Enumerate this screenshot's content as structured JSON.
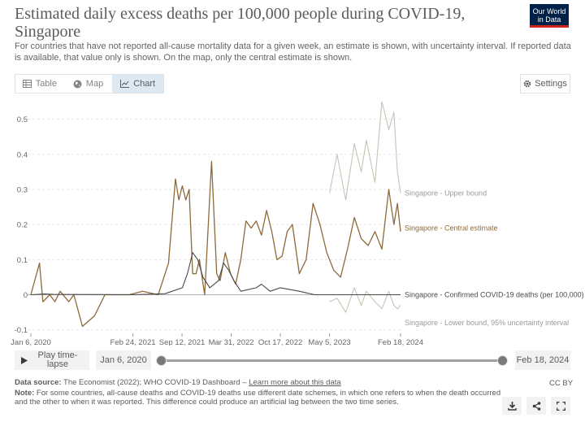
{
  "header": {
    "title": "Estimated daily excess deaths per 100,000 people during COVID-19, Singapore",
    "subtitle": "For countries that have not reported all-cause mortality data for a given week, an estimate is shown, with uncertainty interval. If reported data is available, that value only is shown. On the map, only the central estimate is shown.",
    "logo_line1": "Our World",
    "logo_line2": "in Data"
  },
  "tabs": [
    {
      "label": "Table",
      "icon": "table-icon"
    },
    {
      "label": "Map",
      "icon": "globe-icon"
    },
    {
      "label": "Chart",
      "icon": "line-chart-icon",
      "active": true
    }
  ],
  "settings_label": "Settings",
  "controls": {
    "play_label": "Play time-lapse",
    "start_date": "Jan 6, 2020",
    "end_date": "Feb 18, 2024"
  },
  "footer": {
    "source_label": "Data source:",
    "source_text": "The Economist (2022); WHO COVID-19 Dashboard – ",
    "source_link": "Learn more about this data",
    "note_label": "Note:",
    "note_text": "For some countries, all-cause deaths and COVID-19 deaths use different date schemes, in which one refers to when the death occurred and the other to when it was reported. This difference could produce an artificial lag between the two time series.",
    "license": "CC BY"
  },
  "colors": {
    "central": "#8c6a3a",
    "bounds": "#c9c3b6",
    "confirmed": "#484848",
    "logo_bg": "#002147",
    "logo_accent": "#ce261e",
    "active_tab": "#dde9f2"
  },
  "chart_data": {
    "type": "line",
    "title": "Estimated daily excess deaths per 100,000 people during COVID-19, Singapore",
    "ylim": [
      -0.11,
      0.55
    ],
    "y_ticks": [
      -0.1,
      0,
      0.1,
      0.2,
      0.3,
      0.4,
      0.5
    ],
    "x_ticks": [
      "Jan 6, 2020",
      "Feb 24, 2021",
      "Sep 12, 2021",
      "Mar 31, 2022",
      "Oct 17, 2022",
      "May 5, 2023",
      "Feb 18, 2024"
    ],
    "x_range": [
      "2020-01-06",
      "2024-02-18"
    ],
    "grid": "horizontal",
    "series": [
      {
        "name": "Singapore - Central estimate",
        "x": [
          "2020-01-06",
          "2020-02-10",
          "2020-02-24",
          "2020-03-23",
          "2020-04-13",
          "2020-05-04",
          "2020-06-08",
          "2020-06-29",
          "2020-08-03",
          "2020-09-21",
          "2020-11-02",
          "2020-12-21",
          "2021-02-08",
          "2021-04-05",
          "2021-06-07",
          "2021-07-19",
          "2021-08-16",
          "2021-08-30",
          "2021-09-13",
          "2021-09-27",
          "2021-10-11",
          "2021-10-25",
          "2021-11-08",
          "2021-11-22",
          "2021-12-13",
          "2022-01-10",
          "2022-01-31",
          "2022-02-14",
          "2022-03-07",
          "2022-03-28",
          "2022-04-18",
          "2022-05-09",
          "2022-05-30",
          "2022-06-20",
          "2022-07-11",
          "2022-08-01",
          "2022-08-22",
          "2022-09-12",
          "2022-10-03",
          "2022-10-24",
          "2022-11-14",
          "2022-12-05",
          "2023-01-02",
          "2023-01-30",
          "2023-02-27",
          "2023-03-27",
          "2023-04-24",
          "2023-05-22",
          "2023-06-19",
          "2023-07-17",
          "2023-08-14",
          "2023-09-11",
          "2023-10-09",
          "2023-11-06",
          "2023-12-04",
          "2024-01-01",
          "2024-01-22",
          "2024-02-05",
          "2024-02-18"
        ],
        "y": [
          0.0,
          0.09,
          -0.02,
          0.0,
          -0.02,
          0.01,
          -0.02,
          0.0,
          -0.09,
          -0.06,
          0.0,
          0.0,
          0.0,
          0.01,
          0.0,
          0.09,
          0.33,
          0.27,
          0.31,
          0.27,
          0.3,
          0.06,
          0.06,
          0.1,
          0.0,
          0.38,
          0.06,
          0.04,
          0.12,
          0.06,
          0.03,
          0.1,
          0.21,
          0.19,
          0.21,
          0.17,
          0.24,
          0.18,
          0.1,
          0.11,
          0.18,
          0.2,
          0.06,
          0.1,
          0.26,
          0.2,
          0.12,
          0.07,
          0.05,
          0.13,
          0.22,
          0.16,
          0.14,
          0.18,
          0.13,
          0.3,
          0.2,
          0.26,
          0.18
        ]
      },
      {
        "name": "Singapore - Upper bound",
        "x": [
          "2023-05-05",
          "2023-06-05",
          "2023-07-10",
          "2023-08-14",
          "2023-09-11",
          "2023-10-02",
          "2023-11-06",
          "2023-12-04",
          "2024-01-01",
          "2024-01-22",
          "2024-02-05",
          "2024-02-18"
        ],
        "y": [
          0.29,
          0.4,
          0.27,
          0.43,
          0.35,
          0.44,
          0.32,
          0.55,
          0.47,
          0.52,
          0.35,
          0.29
        ]
      },
      {
        "name": "Singapore - Lower bound, 95% uncertainty interval",
        "x": [
          "2023-05-05",
          "2023-06-05",
          "2023-07-10",
          "2023-08-14",
          "2023-09-11",
          "2023-10-02",
          "2023-11-06",
          "2023-12-04",
          "2024-01-01",
          "2024-01-22",
          "2024-02-05",
          "2024-02-18"
        ],
        "y": [
          -0.02,
          -0.01,
          -0.05,
          0.02,
          -0.03,
          0.01,
          -0.02,
          -0.04,
          0.01,
          -0.03,
          -0.04,
          -0.03
        ]
      },
      {
        "name": "Singapore - Confirmed COVID-19 deaths (per 100,000)",
        "x": [
          "2020-01-06",
          "2020-03-02",
          "2020-04-06",
          "2021-02-24",
          "2021-07-05",
          "2021-09-13",
          "2021-10-04",
          "2021-10-25",
          "2021-11-15",
          "2021-12-06",
          "2022-01-03",
          "2022-02-07",
          "2022-02-28",
          "2022-03-21",
          "2022-04-11",
          "2022-05-09",
          "2022-07-11",
          "2022-08-01",
          "2022-09-05",
          "2022-10-17",
          "2023-01-02",
          "2023-03-06",
          "2023-05-05",
          "2023-07-03",
          "2023-09-04",
          "2023-11-06",
          "2024-01-01",
          "2024-02-18"
        ],
        "y": [
          0.0,
          0.002,
          0.001,
          0.0,
          0.003,
          0.02,
          0.06,
          0.12,
          0.1,
          0.05,
          0.02,
          0.04,
          0.09,
          0.07,
          0.04,
          0.01,
          0.02,
          0.03,
          0.01,
          0.02,
          0.01,
          0.0,
          0.0,
          0.0,
          0.0,
          0.0,
          0.0,
          0.0
        ]
      }
    ],
    "series_labels": {
      "upper": "Singapore - Upper bound",
      "central": "Singapore - Central estimate",
      "confirmed": "Singapore - Confirmed COVID-19 deaths (per 100,000)",
      "lower": "Singapore - Lower bound, 95% uncertainty interval"
    }
  }
}
